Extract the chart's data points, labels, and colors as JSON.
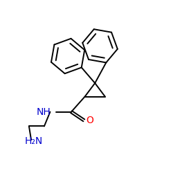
{
  "background_color": "#ffffff",
  "bond_color": "#000000",
  "nh_color": "#0000cd",
  "o_color": "#ff0000",
  "nh2_color": "#0000cd",
  "line_width": 1.4,
  "figsize": [
    2.5,
    2.5
  ],
  "dpi": 100,
  "xlim": [
    0,
    10
  ],
  "ylim": [
    0,
    10
  ],
  "font_size": 10
}
